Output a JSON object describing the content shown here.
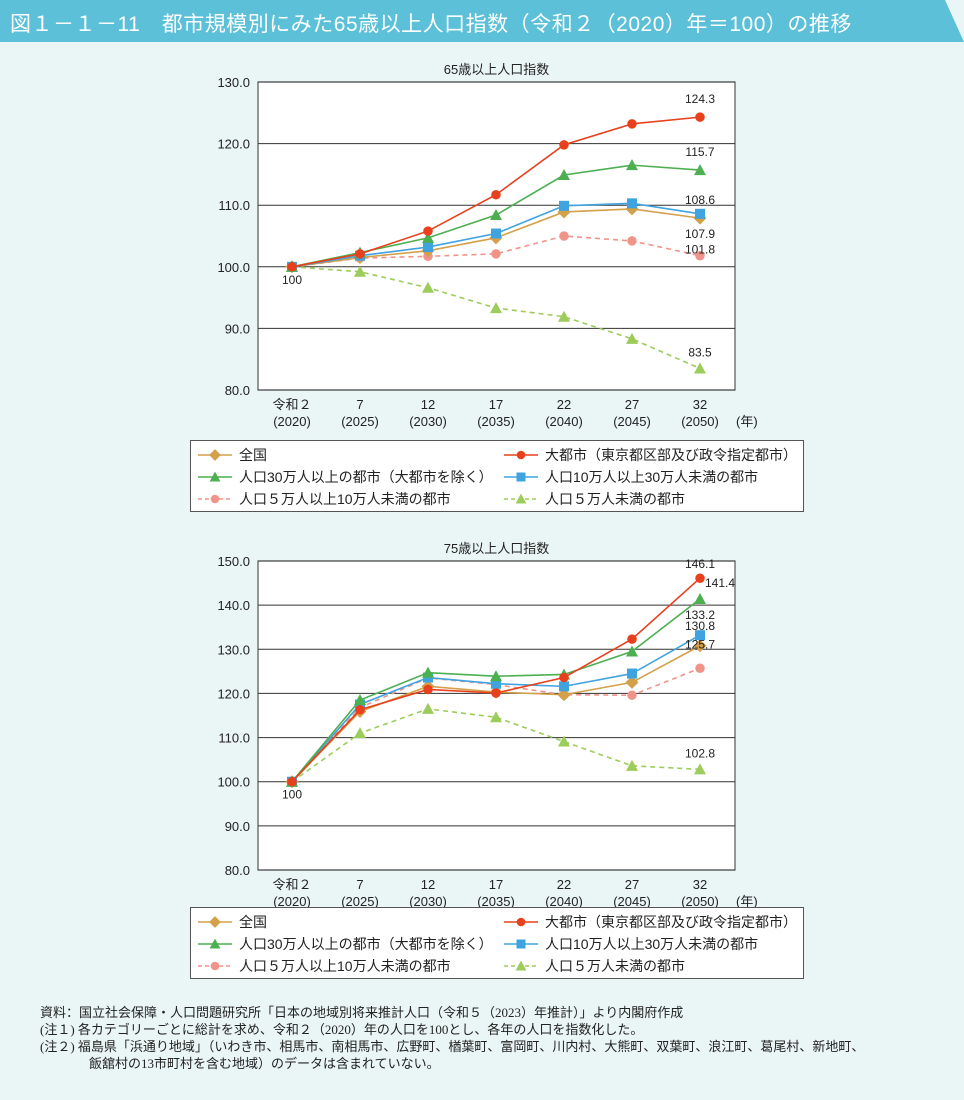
{
  "header": {
    "title": "図１－１－11　都市規模別にみた65歳以上人口指数（令和２（2020）年＝100）の推移",
    "color": "#5bc0d8"
  },
  "series_meta": [
    {
      "name": "全国",
      "color": "#d4a04a",
      "marker": "diamond",
      "dashed": false
    },
    {
      "name": "大都市（東京都区部及び政令指定都市）",
      "color": "#e8401c",
      "marker": "circle",
      "dashed": false
    },
    {
      "name": "人口30万人以上の都市（大都市を除く）",
      "color": "#4caf50",
      "marker": "triangle",
      "dashed": false
    },
    {
      "name": "人口10万人以上30万人未満の都市",
      "color": "#3fa3e0",
      "marker": "square",
      "dashed": false
    },
    {
      "name": "人口５万人以上10万人未満の都市",
      "color": "#f0948a",
      "marker": "circle",
      "dashed": true
    },
    {
      "name": "人口５万人未満の都市",
      "color": "#9ccc5a",
      "marker": "triangle",
      "dashed": true
    }
  ],
  "chart_data": [
    {
      "type": "line",
      "title": "65歳以上人口指数",
      "categories": [
        [
          "令和２",
          "(2020)"
        ],
        [
          "7",
          "(2025)"
        ],
        [
          "12",
          "(2030)"
        ],
        [
          "17",
          "(2035)"
        ],
        [
          "22",
          "(2040)"
        ],
        [
          "27",
          "(2045)"
        ],
        [
          "32",
          "(2050)"
        ]
      ],
      "x_unit": "(年)",
      "ylim": [
        80,
        130
      ],
      "yticks": [
        "130.0",
        "120.0",
        "110.0",
        "100.0",
        "90.0",
        "80.0"
      ],
      "grid": true,
      "legend": "bottom",
      "start_label": "100",
      "series": [
        {
          "name": "全国",
          "values": [
            100,
            101.5,
            102.6,
            104.7,
            108.9,
            109.4,
            107.9
          ],
          "end_label": "107.9"
        },
        {
          "name": "大都市（東京都区部及び政令指定都市）",
          "values": [
            100,
            102.1,
            105.8,
            111.7,
            119.8,
            123.2,
            124.3
          ],
          "end_label": "124.3"
        },
        {
          "name": "人口30万人以上の都市（大都市を除く）",
          "values": [
            100,
            102.3,
            104.7,
            108.4,
            114.9,
            116.5,
            115.7
          ],
          "end_label": "115.7"
        },
        {
          "name": "人口10万人以上30万人未満の都市",
          "values": [
            100,
            101.8,
            103.2,
            105.4,
            109.9,
            110.3,
            108.6
          ],
          "end_label": "108.6"
        },
        {
          "name": "人口５万人以上10万人未満の都市",
          "values": [
            100,
            101.4,
            101.7,
            102.1,
            105.0,
            104.2,
            101.8
          ],
          "end_label": "101.8"
        },
        {
          "name": "人口５万人未満の都市",
          "values": [
            100,
            99.2,
            96.6,
            93.3,
            91.9,
            88.3,
            83.5
          ],
          "end_label": "83.5"
        }
      ]
    },
    {
      "type": "line",
      "title": "75歳以上人口指数",
      "categories": [
        [
          "令和２",
          "(2020)"
        ],
        [
          "7",
          "(2025)"
        ],
        [
          "12",
          "(2030)"
        ],
        [
          "17",
          "(2035)"
        ],
        [
          "22",
          "(2040)"
        ],
        [
          "27",
          "(2045)"
        ],
        [
          "32",
          "(2050)"
        ]
      ],
      "x_unit": "(年)",
      "ylim": [
        80,
        150
      ],
      "yticks": [
        "150.0",
        "140.0",
        "130.0",
        "120.0",
        "110.0",
        "100.0",
        "90.0",
        "80.0"
      ],
      "grid": true,
      "legend": "bottom",
      "start_label": "100",
      "series": [
        {
          "name": "全国",
          "values": [
            100,
            115.9,
            121.6,
            120.3,
            119.7,
            122.5,
            130.8
          ],
          "end_label": "130.8"
        },
        {
          "name": "大都市（東京都区部及び政令指定都市）",
          "values": [
            100,
            116.3,
            120.9,
            120.1,
            123.6,
            132.3,
            146.1
          ],
          "end_label": "146.1"
        },
        {
          "name": "人口30万人以上の都市（大都市を除く）",
          "values": [
            100,
            118.5,
            124.7,
            123.9,
            124.3,
            129.5,
            141.4
          ],
          "end_label": "141.4"
        },
        {
          "name": "人口10万人以上30万人未満の都市",
          "values": [
            100,
            117.5,
            123.6,
            122.2,
            121.6,
            124.5,
            133.2
          ],
          "end_label": "133.2"
        },
        {
          "name": "人口５万人以上10万人未満の都市",
          "values": [
            100,
            116.8,
            123.5,
            122.0,
            119.7,
            119.6,
            125.7
          ],
          "end_label": "125.7"
        },
        {
          "name": "人口５万人未満の都市",
          "values": [
            100,
            111.0,
            116.5,
            114.6,
            109.1,
            103.6,
            102.8
          ],
          "end_label": "102.8"
        }
      ]
    }
  ],
  "notes": [
    "資料：国立社会保障・人口問題研究所「日本の地域別将来推計人口（令和５（2023）年推計）」より内閣府作成",
    "(注１) 各カテゴリーごとに総計を求め、令和２（2020）年の人口を100とし、各年の人口を指数化した。",
    "(注２) 福島県「浜通り地域」（いわき市、相馬市、南相馬市、広野町、楢葉町、富岡町、川内村、大熊町、双葉町、浪江町、葛尾村、新地町、",
    "飯舘村の13市町村を含む地域）のデータは含まれていない。"
  ]
}
